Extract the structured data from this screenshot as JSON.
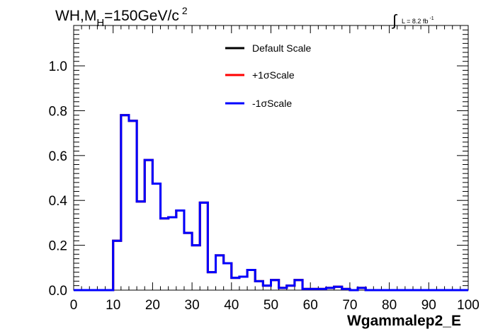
{
  "header": {
    "title_main": "WH,M",
    "title_sub": "H",
    "title_rest": "=150GeV/c",
    "title_sup": "2",
    "lumi_integral": "∫",
    "lumi_text": "L = 8.2 fb",
    "lumi_sup": "-1"
  },
  "chart_data": {
    "type": "line",
    "style": "step-histogram",
    "xlabel": "Wgammalep2_E",
    "ylabel": "",
    "xlim": [
      0,
      100
    ],
    "ylim": [
      0,
      1.18
    ],
    "x_ticks": [
      0,
      10,
      20,
      30,
      40,
      50,
      60,
      70,
      80,
      90,
      100
    ],
    "y_ticks": [
      0.0,
      0.2,
      0.4,
      0.6,
      0.8,
      1.0
    ],
    "x_tick_labels": [
      "0",
      "10",
      "20",
      "30",
      "40",
      "50",
      "60",
      "70",
      "80",
      "90",
      "100"
    ],
    "y_tick_labels": [
      "0.0",
      "0.2",
      "0.4",
      "0.6",
      "0.8",
      "1.0"
    ],
    "grid": false,
    "legend_position": "top-center",
    "bin_edges": [
      0,
      2,
      4,
      6,
      8,
      10,
      12,
      14,
      16,
      18,
      20,
      22,
      24,
      26,
      28,
      30,
      32,
      34,
      36,
      38,
      40,
      42,
      44,
      46,
      48,
      50,
      52,
      54,
      56,
      58,
      60,
      62,
      64,
      66,
      68,
      70,
      72,
      74,
      76,
      78,
      80,
      82,
      84,
      86,
      88,
      90,
      92,
      94,
      96,
      98,
      100
    ],
    "series": [
      {
        "name": "Default Scale",
        "color": "#000000",
        "values": [
          0,
          0,
          0,
          0,
          0,
          0.22,
          0.78,
          0.755,
          0.395,
          0.58,
          0.475,
          0.32,
          0.325,
          0.355,
          0.255,
          0.2,
          0.39,
          0.08,
          0.155,
          0.12,
          0.055,
          0.06,
          0.09,
          0.04,
          0.02,
          0.045,
          0.01,
          0.02,
          0.045,
          0.005,
          0.005,
          0.005,
          0.01,
          0.015,
          0.005,
          0,
          0.01,
          0,
          0,
          0,
          0,
          0,
          0,
          0,
          0,
          0,
          0,
          0,
          0,
          0
        ]
      },
      {
        "name": "+1σScale",
        "color": "#ff0000",
        "values": [
          0,
          0,
          0,
          0,
          0,
          0.22,
          0.78,
          0.755,
          0.395,
          0.58,
          0.475,
          0.32,
          0.325,
          0.355,
          0.255,
          0.2,
          0.39,
          0.08,
          0.155,
          0.12,
          0.055,
          0.06,
          0.09,
          0.04,
          0.02,
          0.045,
          0.01,
          0.02,
          0.045,
          0.005,
          0.005,
          0.005,
          0.01,
          0.015,
          0.005,
          0,
          0.01,
          0,
          0,
          0,
          0,
          0,
          0,
          0,
          0,
          0,
          0,
          0,
          0,
          0
        ]
      },
      {
        "name": "-1σScale",
        "color": "#0000ff",
        "values": [
          0,
          0,
          0,
          0,
          0,
          0.22,
          0.78,
          0.755,
          0.395,
          0.58,
          0.475,
          0.32,
          0.325,
          0.355,
          0.255,
          0.2,
          0.39,
          0.08,
          0.155,
          0.12,
          0.055,
          0.06,
          0.09,
          0.04,
          0.02,
          0.045,
          0.01,
          0.02,
          0.045,
          0.005,
          0.005,
          0.005,
          0.01,
          0.015,
          0.005,
          0,
          0.01,
          0,
          0,
          0,
          0,
          0,
          0,
          0,
          0,
          0,
          0,
          0,
          0,
          0
        ]
      }
    ]
  }
}
